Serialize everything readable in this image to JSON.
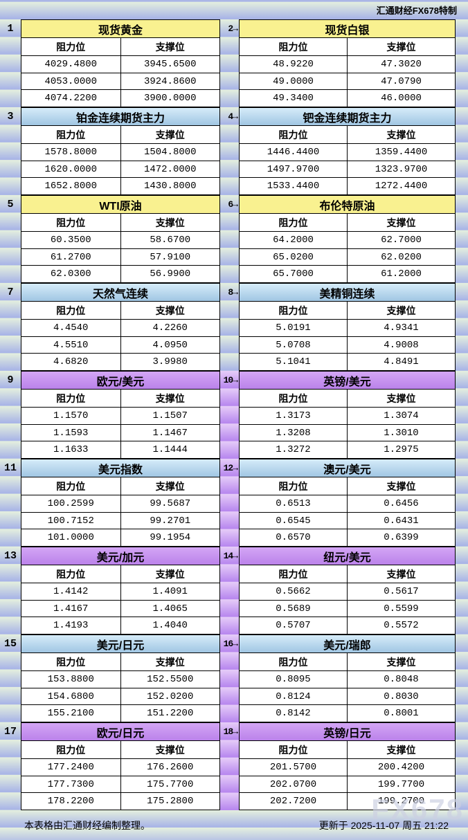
{
  "header": {
    "brand": "汇通财经FX678特制"
  },
  "footer": {
    "note": "本表格由汇通财经编制整理。",
    "updated": "更新于 2025-11-07 周五 21:22"
  },
  "watermark": "FX678",
  "columns": {
    "resistance": "阻力位",
    "support": "支撑位"
  },
  "colors": {
    "yellow_title": "#f9f190",
    "blue_title_top": "#d6ecf9",
    "blue_title_bottom": "#a0c6e3",
    "purple_title_top": "#d4a6f5",
    "purple_title_bottom": "#bb82ea",
    "stripe_light": "#e5f0de",
    "stripe_dark": "#a6b2e7",
    "gutter_purple_light": "#e6cdf8",
    "gutter_purple_dark": "#b685ee",
    "cell_bg": "#ffffff",
    "border": "#000000"
  },
  "sections": [
    {
      "left": {
        "num": "1",
        "title": "现货黄金",
        "rows": [
          [
            "4029.4800",
            "3945.6500"
          ],
          [
            "4053.0000",
            "3924.8600"
          ],
          [
            "4074.2200",
            "3900.0000"
          ]
        ]
      },
      "right": {
        "num": "2→",
        "title": "现货白银",
        "rows": [
          [
            "48.9220",
            "47.3020"
          ],
          [
            "49.0000",
            "47.0790"
          ],
          [
            "49.3400",
            "46.0000"
          ]
        ]
      }
    },
    {
      "left": {
        "num": "3",
        "title": "铂金连续期货主力",
        "rows": [
          [
            "1578.8000",
            "1504.8000"
          ],
          [
            "1620.0000",
            "1472.0000"
          ],
          [
            "1652.8000",
            "1430.8000"
          ]
        ]
      },
      "right": {
        "num": "4→",
        "title": "钯金连续期货主力",
        "rows": [
          [
            "1446.4400",
            "1359.4400"
          ],
          [
            "1497.9700",
            "1323.9700"
          ],
          [
            "1533.4400",
            "1272.4400"
          ]
        ]
      }
    },
    {
      "left": {
        "num": "5",
        "title": "WTI原油",
        "rows": [
          [
            "60.3500",
            "58.6700"
          ],
          [
            "61.2700",
            "57.9100"
          ],
          [
            "62.0300",
            "56.9900"
          ]
        ]
      },
      "right": {
        "num": "6→",
        "title": "布伦特原油",
        "rows": [
          [
            "64.2000",
            "62.7000"
          ],
          [
            "65.0200",
            "62.0200"
          ],
          [
            "65.7000",
            "61.2000"
          ]
        ]
      }
    },
    {
      "left": {
        "num": "7",
        "title": "天然气连续",
        "rows": [
          [
            "4.4540",
            "4.2260"
          ],
          [
            "4.5510",
            "4.0950"
          ],
          [
            "4.6820",
            "3.9980"
          ]
        ]
      },
      "right": {
        "num": "8→",
        "title": "美精铜连续",
        "rows": [
          [
            "5.0191",
            "4.9341"
          ],
          [
            "5.0708",
            "4.9008"
          ],
          [
            "5.1041",
            "4.8491"
          ]
        ]
      }
    },
    {
      "left": {
        "num": "9",
        "title": "欧元/美元",
        "rows": [
          [
            "1.1570",
            "1.1507"
          ],
          [
            "1.1593",
            "1.1467"
          ],
          [
            "1.1633",
            "1.1444"
          ]
        ]
      },
      "right": {
        "num": "10→",
        "title": "英镑/美元",
        "rows": [
          [
            "1.3173",
            "1.3074"
          ],
          [
            "1.3208",
            "1.3010"
          ],
          [
            "1.3272",
            "1.2975"
          ]
        ]
      }
    },
    {
      "left": {
        "num": "11",
        "title": "美元指数",
        "rows": [
          [
            "100.2599",
            "99.5687"
          ],
          [
            "100.7152",
            "99.2701"
          ],
          [
            "101.0000",
            "99.1954"
          ]
        ]
      },
      "right": {
        "num": "12→",
        "title": "澳元/美元",
        "rows": [
          [
            "0.6513",
            "0.6456"
          ],
          [
            "0.6545",
            "0.6431"
          ],
          [
            "0.6570",
            "0.6399"
          ]
        ]
      }
    },
    {
      "left": {
        "num": "13",
        "title": "美元/加元",
        "rows": [
          [
            "1.4142",
            "1.4091"
          ],
          [
            "1.4167",
            "1.4065"
          ],
          [
            "1.4193",
            "1.4040"
          ]
        ]
      },
      "right": {
        "num": "14→",
        "title": "纽元/美元",
        "rows": [
          [
            "0.5662",
            "0.5617"
          ],
          [
            "0.5689",
            "0.5599"
          ],
          [
            "0.5707",
            "0.5572"
          ]
        ]
      }
    },
    {
      "left": {
        "num": "15",
        "title": "美元/日元",
        "rows": [
          [
            "153.8800",
            "152.5500"
          ],
          [
            "154.6800",
            "152.0200"
          ],
          [
            "155.2100",
            "151.2200"
          ]
        ]
      },
      "right": {
        "num": "16→",
        "title": "美元/瑞郎",
        "rows": [
          [
            "0.8095",
            "0.8048"
          ],
          [
            "0.8124",
            "0.8030"
          ],
          [
            "0.8142",
            "0.8001"
          ]
        ]
      }
    },
    {
      "left": {
        "num": "17",
        "title": "欧元/日元",
        "rows": [
          [
            "177.2400",
            "176.2600"
          ],
          [
            "177.7300",
            "175.7700"
          ],
          [
            "178.2200",
            "175.2800"
          ]
        ]
      },
      "right": {
        "num": "18→",
        "title": "英镑/日元",
        "rows": [
          [
            "201.5700",
            "200.4200"
          ],
          [
            "202.0700",
            "199.7700"
          ],
          [
            "202.7200",
            "199.2700"
          ]
        ]
      }
    }
  ],
  "chart_data": [
    {
      "type": "table",
      "title": "现货黄金",
      "columns": [
        "阻力位",
        "支撑位"
      ],
      "rows": [
        [
          4029.48,
          3945.65
        ],
        [
          4053.0,
          3924.86
        ],
        [
          4074.22,
          3900.0
        ]
      ]
    },
    {
      "type": "table",
      "title": "现货白银",
      "columns": [
        "阻力位",
        "支撑位"
      ],
      "rows": [
        [
          48.922,
          47.302
        ],
        [
          49.0,
          47.079
        ],
        [
          49.34,
          46.0
        ]
      ]
    },
    {
      "type": "table",
      "title": "铂金连续期货主力",
      "columns": [
        "阻力位",
        "支撑位"
      ],
      "rows": [
        [
          1578.8,
          1504.8
        ],
        [
          1620.0,
          1472.0
        ],
        [
          1652.8,
          1430.8
        ]
      ]
    },
    {
      "type": "table",
      "title": "钯金连续期货主力",
      "columns": [
        "阻力位",
        "支撑位"
      ],
      "rows": [
        [
          1446.44,
          1359.44
        ],
        [
          1497.97,
          1323.97
        ],
        [
          1533.44,
          1272.44
        ]
      ]
    },
    {
      "type": "table",
      "title": "WTI原油",
      "columns": [
        "阻力位",
        "支撑位"
      ],
      "rows": [
        [
          60.35,
          58.67
        ],
        [
          61.27,
          57.91
        ],
        [
          62.03,
          56.99
        ]
      ]
    },
    {
      "type": "table",
      "title": "布伦特原油",
      "columns": [
        "阻力位",
        "支撑位"
      ],
      "rows": [
        [
          64.2,
          62.7
        ],
        [
          65.02,
          62.02
        ],
        [
          65.7,
          61.2
        ]
      ]
    },
    {
      "type": "table",
      "title": "天然气连续",
      "columns": [
        "阻力位",
        "支撑位"
      ],
      "rows": [
        [
          4.454,
          4.226
        ],
        [
          4.551,
          4.095
        ],
        [
          4.682,
          3.998
        ]
      ]
    },
    {
      "type": "table",
      "title": "美精铜连续",
      "columns": [
        "阻力位",
        "支撑位"
      ],
      "rows": [
        [
          5.0191,
          4.9341
        ],
        [
          5.0708,
          4.9008
        ],
        [
          5.1041,
          4.8491
        ]
      ]
    },
    {
      "type": "table",
      "title": "欧元/美元",
      "columns": [
        "阻力位",
        "支撑位"
      ],
      "rows": [
        [
          1.157,
          1.1507
        ],
        [
          1.1593,
          1.1467
        ],
        [
          1.1633,
          1.1444
        ]
      ]
    },
    {
      "type": "table",
      "title": "英镑/美元",
      "columns": [
        "阻力位",
        "支撑位"
      ],
      "rows": [
        [
          1.3173,
          1.3074
        ],
        [
          1.3208,
          1.301
        ],
        [
          1.3272,
          1.2975
        ]
      ]
    },
    {
      "type": "table",
      "title": "美元指数",
      "columns": [
        "阻力位",
        "支撑位"
      ],
      "rows": [
        [
          100.2599,
          99.5687
        ],
        [
          100.7152,
          99.2701
        ],
        [
          101.0,
          99.1954
        ]
      ]
    },
    {
      "type": "table",
      "title": "澳元/美元",
      "columns": [
        "阻力位",
        "支撑位"
      ],
      "rows": [
        [
          0.6513,
          0.6456
        ],
        [
          0.6545,
          0.6431
        ],
        [
          0.657,
          0.6399
        ]
      ]
    },
    {
      "type": "table",
      "title": "美元/加元",
      "columns": [
        "阻力位",
        "支撑位"
      ],
      "rows": [
        [
          1.4142,
          1.4091
        ],
        [
          1.4167,
          1.4065
        ],
        [
          1.4193,
          1.404
        ]
      ]
    },
    {
      "type": "table",
      "title": "纽元/美元",
      "columns": [
        "阻力位",
        "支撑位"
      ],
      "rows": [
        [
          0.5662,
          0.5617
        ],
        [
          0.5689,
          0.5599
        ],
        [
          0.5707,
          0.5572
        ]
      ]
    },
    {
      "type": "table",
      "title": "美元/日元",
      "columns": [
        "阻力位",
        "支撑位"
      ],
      "rows": [
        [
          153.88,
          152.55
        ],
        [
          154.68,
          152.02
        ],
        [
          155.21,
          151.22
        ]
      ]
    },
    {
      "type": "table",
      "title": "美元/瑞郎",
      "columns": [
        "阻力位",
        "支撑位"
      ],
      "rows": [
        [
          0.8095,
          0.8048
        ],
        [
          0.8124,
          0.803
        ],
        [
          0.8142,
          0.8001
        ]
      ]
    },
    {
      "type": "table",
      "title": "欧元/日元",
      "columns": [
        "阻力位",
        "支撑位"
      ],
      "rows": [
        [
          177.24,
          176.26
        ],
        [
          177.73,
          175.77
        ],
        [
          178.22,
          175.28
        ]
      ]
    },
    {
      "type": "table",
      "title": "英镑/日元",
      "columns": [
        "阻力位",
        "支撑位"
      ],
      "rows": [
        [
          201.57,
          200.42
        ],
        [
          202.07,
          199.77
        ],
        [
          202.72,
          199.27
        ]
      ]
    }
  ]
}
